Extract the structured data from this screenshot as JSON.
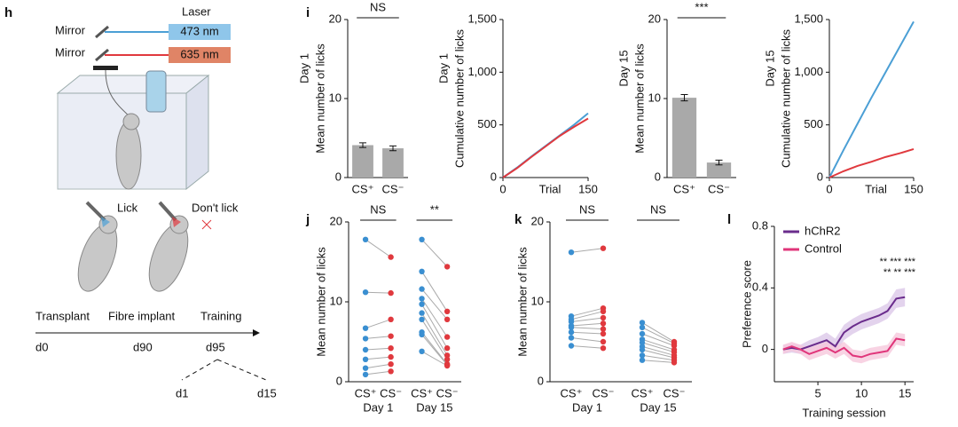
{
  "panel_labels": [
    "h",
    "i",
    "j",
    "k",
    "l"
  ],
  "diagram": {
    "mirror_1": "Mirror",
    "mirror_2": "Mirror",
    "laser": "Laser",
    "wavelength_1": "473 nm",
    "wavelength_2": "635 nm",
    "lick": "Lick",
    "dont_lick": "Don't lick",
    "timeline": [
      "Transplant",
      "Fibre implant",
      "Training"
    ],
    "days": [
      "d0",
      "d90",
      "d95"
    ],
    "sessions": [
      "d1",
      "d15"
    ]
  },
  "chart_data": [
    {
      "type": "bar",
      "subtitle": "Day 1",
      "y_label": "Mean number of licks",
      "annotation": "NS",
      "categories": [
        "CS⁺",
        "CS⁻"
      ],
      "values": [
        4.1,
        3.7
      ],
      "errors": [
        0.3,
        0.3
      ],
      "color": "#a9a9a9",
      "ylim": [
        0,
        20
      ],
      "yticks": [
        0,
        10,
        20
      ]
    },
    {
      "type": "line",
      "subtitle": "Day 1",
      "y_label": "Cumulative number of licks",
      "x_label": "Trial",
      "x": [
        0,
        25,
        50,
        75,
        100,
        125,
        150
      ],
      "series": [
        {
          "color": "#4b9fd5",
          "values": [
            0,
            95,
            200,
            300,
            400,
            500,
            610
          ]
        },
        {
          "color": "#e0393e",
          "values": [
            0,
            90,
            195,
            295,
            395,
            480,
            560
          ]
        }
      ],
      "xlim": [
        0,
        150
      ],
      "xticks": [
        0,
        150
      ],
      "ylim": [
        0,
        1500
      ],
      "yticks": [
        0,
        500,
        {
          "value": 1000,
          "label": "1,000"
        },
        {
          "value": 1500,
          "label": "1,500"
        }
      ]
    },
    {
      "type": "bar",
      "subtitle": "Day 15",
      "y_label": "Mean number of licks",
      "annotation": "***",
      "categories": [
        "CS⁺",
        "CS⁻"
      ],
      "values": [
        10.1,
        1.9
      ],
      "errors": [
        0.4,
        0.3
      ],
      "color": "#a9a9a9",
      "ylim": [
        0,
        20
      ],
      "yticks": [
        0,
        10,
        20
      ]
    },
    {
      "type": "line",
      "subtitle": "Day 15",
      "y_label": "Cumulative number of licks",
      "x_label": "Trial",
      "x": [
        0,
        25,
        50,
        75,
        100,
        125,
        150
      ],
      "series": [
        {
          "color": "#4b9fd5",
          "values": [
            0,
            260,
            510,
            760,
            1000,
            1240,
            1480
          ]
        },
        {
          "color": "#e0393e",
          "values": [
            0,
            60,
            110,
            150,
            195,
            230,
            270
          ]
        }
      ],
      "xlim": [
        0,
        150
      ],
      "xticks": [
        0,
        150
      ],
      "ylim": [
        0,
        1500
      ],
      "yticks": [
        0,
        500,
        {
          "value": 1000,
          "label": "1,000"
        },
        {
          "value": 1500,
          "label": "1,500"
        }
      ]
    },
    {
      "type": "paired",
      "y_label": "Mean number of licks",
      "categories": [
        "CS⁺",
        "CS⁻"
      ],
      "colors": [
        "#3a8fd1",
        "#e0393e"
      ],
      "ylim": [
        0,
        20
      ],
      "yticks": [
        0,
        10,
        20
      ],
      "groups": [
        {
          "label": "Day 1",
          "annotation": "NS",
          "values": [
            [
              17.8,
              11.2,
              6.7,
              5.4,
              4.0,
              2.8,
              1.7,
              0.9
            ],
            [
              15.6,
              11.1,
              7.8,
              5.7,
              4.2,
              3.1,
              2.2,
              1.3
            ]
          ]
        },
        {
          "label": "Day 15",
          "annotation": "**",
          "values": [
            [
              17.8,
              13.8,
              11.6,
              10.4,
              9.7,
              8.6,
              7.8,
              6.2,
              5.9,
              3.8
            ],
            [
              14.4,
              8.8,
              7.8,
              5.6,
              4.2,
              3.3,
              2.8,
              2.2,
              2.1,
              2.0
            ]
          ]
        }
      ]
    },
    {
      "type": "paired",
      "y_label": "Mean number of licks",
      "categories": [
        "CS⁺",
        "CS⁻"
      ],
      "colors": [
        "#3a8fd1",
        "#e0393e"
      ],
      "ylim": [
        0,
        20
      ],
      "yticks": [
        0,
        10,
        20
      ],
      "groups": [
        {
          "label": "Day 1",
          "annotation": "NS",
          "values": [
            [
              16.2,
              8.2,
              7.8,
              7.5,
              7.0,
              6.8,
              6.2,
              5.5,
              4.5
            ],
            [
              16.7,
              9.2,
              8.8,
              8.0,
              7.3,
              6.6,
              6.0,
              5.0,
              4.2
            ]
          ]
        },
        {
          "label": "Day 15",
          "annotation": "NS",
          "values": [
            [
              7.4,
              6.8,
              6.0,
              5.3,
              4.9,
              4.4,
              4.0,
              3.3,
              2.7
            ],
            [
              5.0,
              4.8,
              4.5,
              4.0,
              3.7,
              3.3,
              3.0,
              2.7,
              2.4
            ]
          ]
        }
      ]
    },
    {
      "type": "line",
      "y_label": "Preference score",
      "x_label": "Training session",
      "x": [
        1,
        2,
        3,
        4,
        5,
        6,
        7,
        8,
        9,
        10,
        11,
        12,
        13,
        14,
        15
      ],
      "series": [
        {
          "name": "hChR2",
          "color": "#6a2c8c",
          "band_color": "#dcc8e8",
          "values": [
            0,
            0.01,
            0,
            0.02,
            0.04,
            0.06,
            0.02,
            0.11,
            0.15,
            0.18,
            0.2,
            0.22,
            0.25,
            0.33,
            0.34
          ],
          "errors": [
            0.03,
            0.03,
            0.03,
            0.04,
            0.04,
            0.05,
            0.05,
            0.05,
            0.05,
            0.05,
            0.05,
            0.05,
            0.05,
            0.06,
            0.06
          ]
        },
        {
          "name": "Control",
          "color": "#e0357a",
          "band_color": "#f6c8dc",
          "values": [
            0,
            0.02,
            0,
            -0.03,
            -0.01,
            0.01,
            -0.02,
            0.01,
            -0.04,
            -0.05,
            -0.03,
            -0.02,
            -0.01,
            0.07,
            0.06
          ],
          "errors": [
            0.03,
            0.03,
            0.03,
            0.04,
            0.04,
            0.04,
            0.04,
            0.04,
            0.04,
            0.04,
            0.04,
            0.04,
            0.04,
            0.04,
            0.04
          ]
        }
      ],
      "annotations": [
        "** *** ***",
        "** ** ***"
      ],
      "xlim": [
        0,
        16
      ],
      "xticks": [
        5,
        10,
        15
      ],
      "ylim": [
        -0.21,
        0.8
      ],
      "yticks": [
        0,
        0.4,
        0.8
      ]
    }
  ]
}
